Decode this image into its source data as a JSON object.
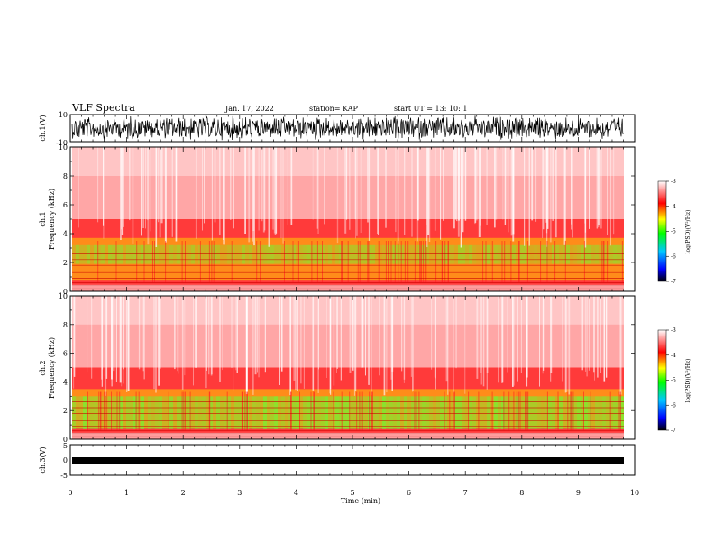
{
  "header": {
    "title": "VLF Spectra",
    "date": "Jan. 17, 2022",
    "station": "station= KAP",
    "start": "start  UT  =    13: 10: 1"
  },
  "chart_data": [
    {
      "type": "line",
      "panel": "ch1-waveform",
      "ylabel": "ch.1(V)",
      "ylim": [
        -10,
        10
      ],
      "yticks": [
        "10",
        "-10"
      ],
      "xlim": [
        0,
        10
      ],
      "description_color": "#000000"
    },
    {
      "type": "heatmap",
      "panel": "ch1-spectrogram",
      "ylabel_channel": "ch.1",
      "ylabel": "Frequency (kHz)",
      "ylim": [
        0,
        10
      ],
      "yticks": [
        "0",
        "2",
        "4",
        "6",
        "8",
        "10"
      ],
      "xlim": [
        0,
        10
      ],
      "colorbar": {
        "label": "log(PSD)(V²/Hz)",
        "range": [
          -7,
          -3
        ],
        "ticks": [
          "-3",
          "-4",
          "-5",
          "-6",
          "-7"
        ]
      }
    },
    {
      "type": "heatmap",
      "panel": "ch2-spectrogram",
      "ylabel_channel": "ch.2",
      "ylabel": "Frequency (kHz)",
      "ylim": [
        0,
        10
      ],
      "yticks": [
        "0",
        "2",
        "4",
        "6",
        "8",
        "10"
      ],
      "xlim": [
        0,
        10
      ],
      "colorbar": {
        "label": "log(PSD)(V²/Hz)",
        "range": [
          -7,
          -3
        ],
        "ticks": [
          "-3",
          "-4",
          "-5",
          "-6",
          "-7"
        ]
      }
    },
    {
      "type": "line",
      "panel": "ch3-waveform",
      "ylabel": "ch.3(V)",
      "ylim": [
        -5,
        5
      ],
      "yticks": [
        "5",
        "0",
        "-5"
      ],
      "xlim": [
        0,
        10
      ],
      "xlabel": "Time (min)",
      "xticks": [
        "0",
        "1",
        "2",
        "3",
        "4",
        "5",
        "6",
        "7",
        "8",
        "9",
        "10"
      ]
    }
  ],
  "colors": {
    "high": "#ff0000",
    "mid": "#ffff00",
    "low": "#00ff00",
    "background": "#ffffff"
  }
}
